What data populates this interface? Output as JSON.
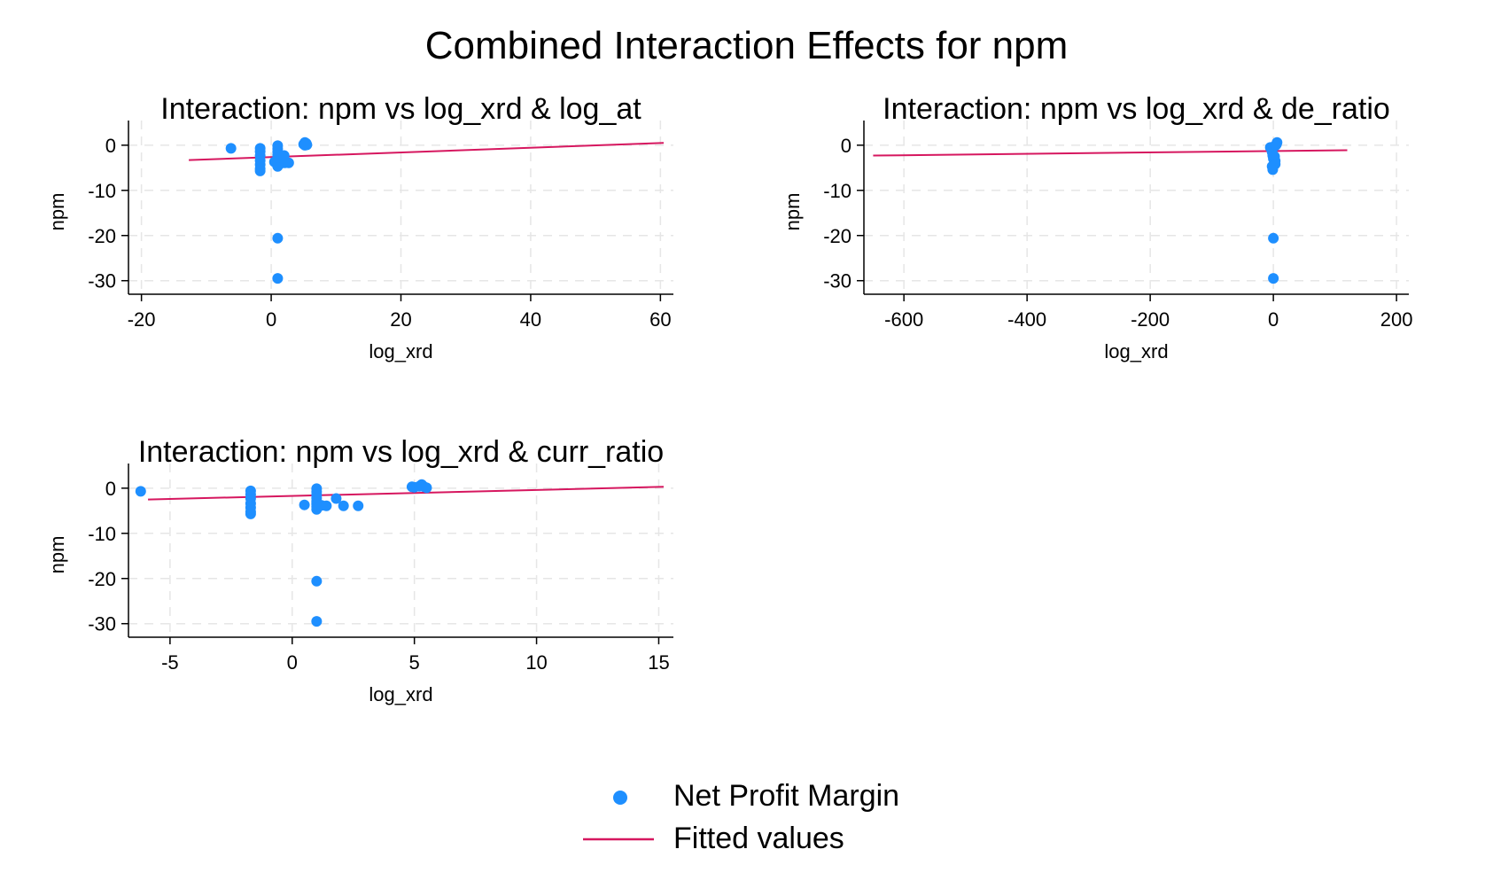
{
  "title": "Combined Interaction Effects for npm",
  "colors": {
    "points": "#1e8fff",
    "fit": "#d6175f"
  },
  "legend": {
    "points_label": "Net Profit Margin",
    "fit_label": "Fitted values",
    "points_icon": "filled-circle-marker",
    "fit_icon": "line-marker"
  },
  "chart_data": [
    {
      "type": "scatter",
      "title": "Interaction: npm vs log_xrd & log_at",
      "xlabel": "log_xrd",
      "ylabel": "npm",
      "xlim": [
        -22,
        62
      ],
      "ylim": [
        -33,
        3.5
      ],
      "xticks": [
        -20,
        0,
        20,
        40,
        60
      ],
      "yticks": [
        0,
        -10,
        -20,
        -30
      ],
      "grid": true,
      "series": [
        {
          "name": "Net Profit Margin",
          "kind": "points",
          "points": [
            [
              -6.2,
              -0.7
            ],
            [
              -1.7,
              -0.7
            ],
            [
              -1.7,
              -1.4
            ],
            [
              -1.7,
              -2.3
            ],
            [
              -1.7,
              -3.4
            ],
            [
              -1.7,
              -4.3
            ],
            [
              -1.7,
              -5.2
            ],
            [
              -1.7,
              -5.7
            ],
            [
              1,
              -0.1
            ],
            [
              1,
              -0.8
            ],
            [
              1,
              -1.5
            ],
            [
              1,
              -2.2
            ],
            [
              1,
              -2.9
            ],
            [
              1,
              -3.3
            ],
            [
              1,
              -3.6
            ],
            [
              1,
              -4.1
            ],
            [
              1,
              -4.7
            ],
            [
              0.5,
              -3.7
            ],
            [
              1.5,
              -4.0
            ],
            [
              2,
              -2.3
            ],
            [
              2.1,
              -3.9
            ],
            [
              2.7,
              -3.9
            ],
            [
              5,
              0.2
            ],
            [
              5.2,
              0.6
            ],
            [
              5.4,
              0.4
            ],
            [
              5.5,
              0.1
            ],
            [
              5.2,
              0.0
            ],
            [
              1,
              -20.6
            ],
            [
              1,
              -29.5
            ]
          ]
        },
        {
          "name": "Fitted values",
          "kind": "line",
          "points": [
            [
              -12.7,
              -3.3
            ],
            [
              60.5,
              0.5
            ]
          ]
        }
      ]
    },
    {
      "type": "scatter",
      "title": "Interaction: npm vs log_xrd & de_ratio",
      "xlabel": "log_xrd",
      "ylabel": "npm",
      "xlim": [
        -665,
        220
      ],
      "ylim": [
        -33,
        3.5
      ],
      "xticks": [
        -600,
        -400,
        -200,
        0,
        200
      ],
      "yticks": [
        0,
        -10,
        -20,
        -30
      ],
      "grid": true,
      "series": [
        {
          "name": "Net Profit Margin",
          "kind": "points",
          "points": [
            [
              -5,
              -0.5
            ],
            [
              -3,
              -0.8
            ],
            [
              -2,
              -1.5
            ],
            [
              -1,
              -2.3
            ],
            [
              0,
              -3.0
            ],
            [
              1,
              -0.3
            ],
            [
              2,
              -2.5
            ],
            [
              3,
              -3.5
            ],
            [
              3,
              -4.2
            ],
            [
              -2,
              -4.7
            ],
            [
              -1,
              -5.4
            ],
            [
              5,
              0.2
            ],
            [
              6,
              0.6
            ],
            [
              4,
              0.0
            ],
            [
              0,
              -20.6
            ],
            [
              0,
              -29.5
            ]
          ]
        },
        {
          "name": "Fitted values",
          "kind": "line",
          "points": [
            [
              -650,
              -2.3
            ],
            [
              120,
              -1.1
            ]
          ]
        }
      ]
    },
    {
      "type": "scatter",
      "title": "Interaction: npm vs log_xrd & curr_ratio",
      "xlabel": "log_xrd",
      "ylabel": "npm",
      "xlim": [
        -6.7,
        15.6
      ],
      "ylim": [
        -33,
        3.5
      ],
      "xticks": [
        -5,
        0,
        5,
        10,
        15
      ],
      "yticks": [
        0,
        -10,
        -20,
        -30
      ],
      "grid": true,
      "series": [
        {
          "name": "Net Profit Margin",
          "kind": "points",
          "points": [
            [
              -6.2,
              -0.7
            ],
            [
              -1.7,
              -0.6
            ],
            [
              -1.7,
              -1.4
            ],
            [
              -1.7,
              -2.3
            ],
            [
              -1.7,
              -3.4
            ],
            [
              -1.7,
              -4.3
            ],
            [
              -1.7,
              -5.2
            ],
            [
              -1.7,
              -5.7
            ],
            [
              0.5,
              -3.7
            ],
            [
              1,
              -0.1
            ],
            [
              1,
              -0.8
            ],
            [
              1,
              -1.5
            ],
            [
              1,
              -2.2
            ],
            [
              1,
              -2.9
            ],
            [
              1,
              -3.3
            ],
            [
              1,
              -3.6
            ],
            [
              1,
              -4.1
            ],
            [
              1,
              -4.7
            ],
            [
              1.2,
              -3.8
            ],
            [
              1.4,
              -3.9
            ],
            [
              1.8,
              -2.3
            ],
            [
              2.1,
              -3.9
            ],
            [
              2.7,
              -3.9
            ],
            [
              4.9,
              0.3
            ],
            [
              5,
              0.2
            ],
            [
              5.2,
              0.4
            ],
            [
              5.3,
              0.8
            ],
            [
              5.4,
              0.3
            ],
            [
              5.5,
              0.1
            ],
            [
              1,
              -20.6
            ],
            [
              1,
              -29.5
            ]
          ]
        },
        {
          "name": "Fitted values",
          "kind": "line",
          "points": [
            [
              -5.9,
              -2.5
            ],
            [
              15.2,
              0.3
            ]
          ]
        }
      ]
    }
  ]
}
